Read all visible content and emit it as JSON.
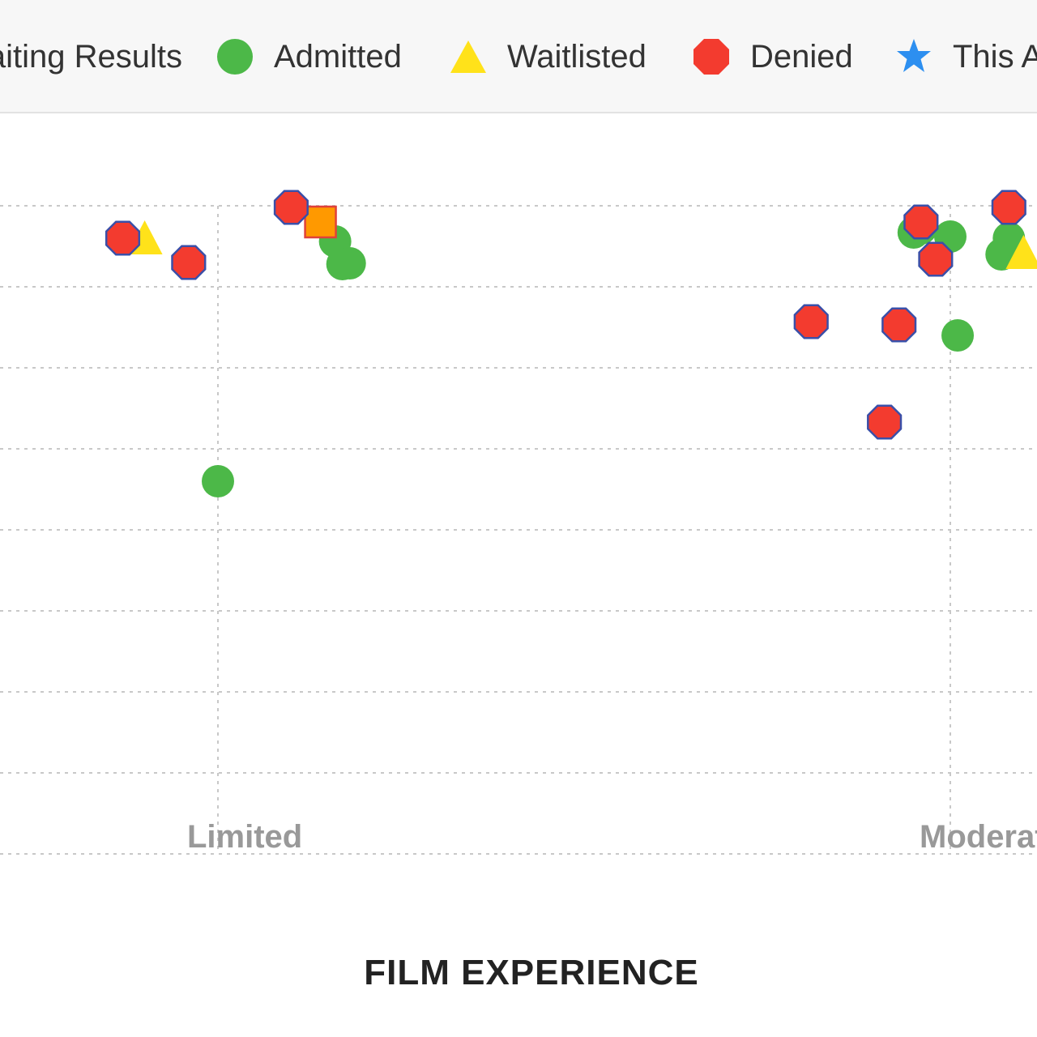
{
  "legend": {
    "items": [
      {
        "label": "Awaiting Results",
        "icon": "square-marker-icon",
        "color": "#ff9900"
      },
      {
        "label": "Admitted",
        "icon": "circle-marker-icon",
        "color": "#4cb848"
      },
      {
        "label": "Waitlisted",
        "icon": "triangle-marker-icon",
        "color": "#ffe21a"
      },
      {
        "label": "Denied",
        "icon": "octagon-marker-icon",
        "color": "#f33b2f"
      },
      {
        "label": "This Applicant",
        "icon": "star-marker-icon",
        "color": "#2d8ff0"
      }
    ]
  },
  "chart_data": {
    "type": "scatter",
    "xlabel": "FILM EXPERIENCE",
    "ylabel": "",
    "x_ticks": [
      {
        "label": "Limited",
        "value": 1
      },
      {
        "label": "Moderate",
        "value": 2
      }
    ],
    "grid": true,
    "legend_position": "top",
    "series": [
      {
        "name": "Admitted",
        "shape": "circle",
        "color": "#4cb848",
        "points": [
          {
            "x": 1.16,
            "y": 7.56
          },
          {
            "x": 1.17,
            "y": 7.28
          },
          {
            "x": 1.18,
            "y": 7.29
          },
          {
            "x": 1.0,
            "y": 4.6
          },
          {
            "x": 2.01,
            "y": 6.4
          },
          {
            "x": 1.95,
            "y": 7.67
          },
          {
            "x": 1.96,
            "y": 7.72
          },
          {
            "x": 2.0,
            "y": 7.62
          },
          {
            "x": 2.07,
            "y": 7.4
          },
          {
            "x": 2.08,
            "y": 7.6
          }
        ]
      },
      {
        "name": "Waitlisted",
        "shape": "triangle",
        "color": "#ffe21a",
        "points": [
          {
            "x": 0.9,
            "y": 7.58
          },
          {
            "x": 2.1,
            "y": 7.4
          }
        ]
      },
      {
        "name": "Denied",
        "shape": "octagon",
        "color": "#f33b2f",
        "points": [
          {
            "x": 0.87,
            "y": 7.6
          },
          {
            "x": 0.96,
            "y": 7.3
          },
          {
            "x": 1.1,
            "y": 7.98
          },
          {
            "x": 2.08,
            "y": 7.98
          },
          {
            "x": 1.96,
            "y": 7.8
          },
          {
            "x": 1.98,
            "y": 7.34
          },
          {
            "x": 1.81,
            "y": 6.57
          },
          {
            "x": 1.93,
            "y": 6.53
          },
          {
            "x": 1.91,
            "y": 5.33
          }
        ]
      },
      {
        "name": "Awaiting Results",
        "shape": "square",
        "color": "#ff9900",
        "points": [
          {
            "x": 1.14,
            "y": 7.8
          }
        ]
      }
    ]
  }
}
